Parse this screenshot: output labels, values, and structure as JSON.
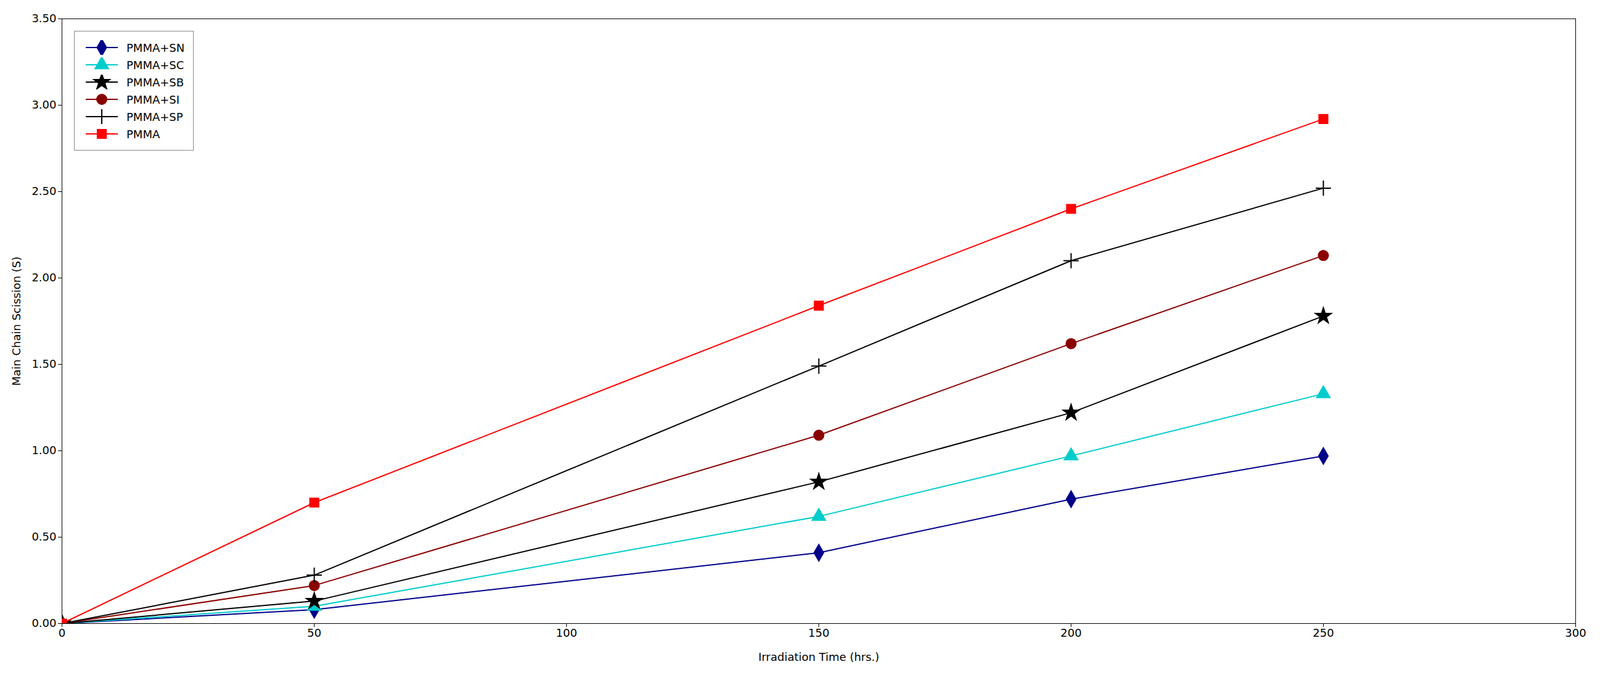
{
  "chart_data": {
    "type": "line",
    "xlabel": "Irradiation Time (hrs.)",
    "ylabel": "Main Chain Scission (S)",
    "x": [
      0,
      50,
      150,
      200,
      250
    ],
    "series": [
      {
        "name": "PMMA+SN",
        "color": "#00008B",
        "marker": "diamond",
        "values": [
          0.0,
          0.08,
          0.41,
          0.72,
          0.97
        ]
      },
      {
        "name": "PMMA+SC",
        "color": "#00CCCC",
        "marker": "triangle",
        "values": [
          0.0,
          0.1,
          0.62,
          0.97,
          1.33
        ]
      },
      {
        "name": "PMMA+SB",
        "color": "#000000",
        "marker": "star",
        "values": [
          0.0,
          0.13,
          0.82,
          1.22,
          1.78
        ]
      },
      {
        "name": "PMMA+SI",
        "color": "#8B0000",
        "marker": "circle",
        "values": [
          0.0,
          0.22,
          1.09,
          1.62,
          2.13
        ]
      },
      {
        "name": "PMMA+SP",
        "color": "#000000",
        "marker": "plus",
        "values": [
          0.0,
          0.28,
          1.49,
          2.1,
          2.52
        ]
      },
      {
        "name": "PMMA",
        "color": "#FF0000",
        "marker": "square",
        "values": [
          0.0,
          0.7,
          1.84,
          2.4,
          2.92
        ]
      }
    ],
    "xlim": [
      0,
      300
    ],
    "ylim": [
      0.0,
      3.5
    ],
    "xticks": [
      0,
      50,
      100,
      150,
      200,
      250,
      300
    ],
    "yticks": [
      {
        "value": 0,
        "label": "0.00"
      },
      {
        "value": 0.5,
        "label": "0.50"
      },
      {
        "value": 1,
        "label": "1.00"
      },
      {
        "value": 1.5,
        "label": "1.50"
      },
      {
        "value": 2,
        "label": "2.00"
      },
      {
        "value": 2.5,
        "label": "2.50"
      },
      {
        "value": 3,
        "label": "3.00"
      },
      {
        "value": 3.5,
        "label": "3.50"
      }
    ],
    "legend": "upper left",
    "grid": false
  }
}
